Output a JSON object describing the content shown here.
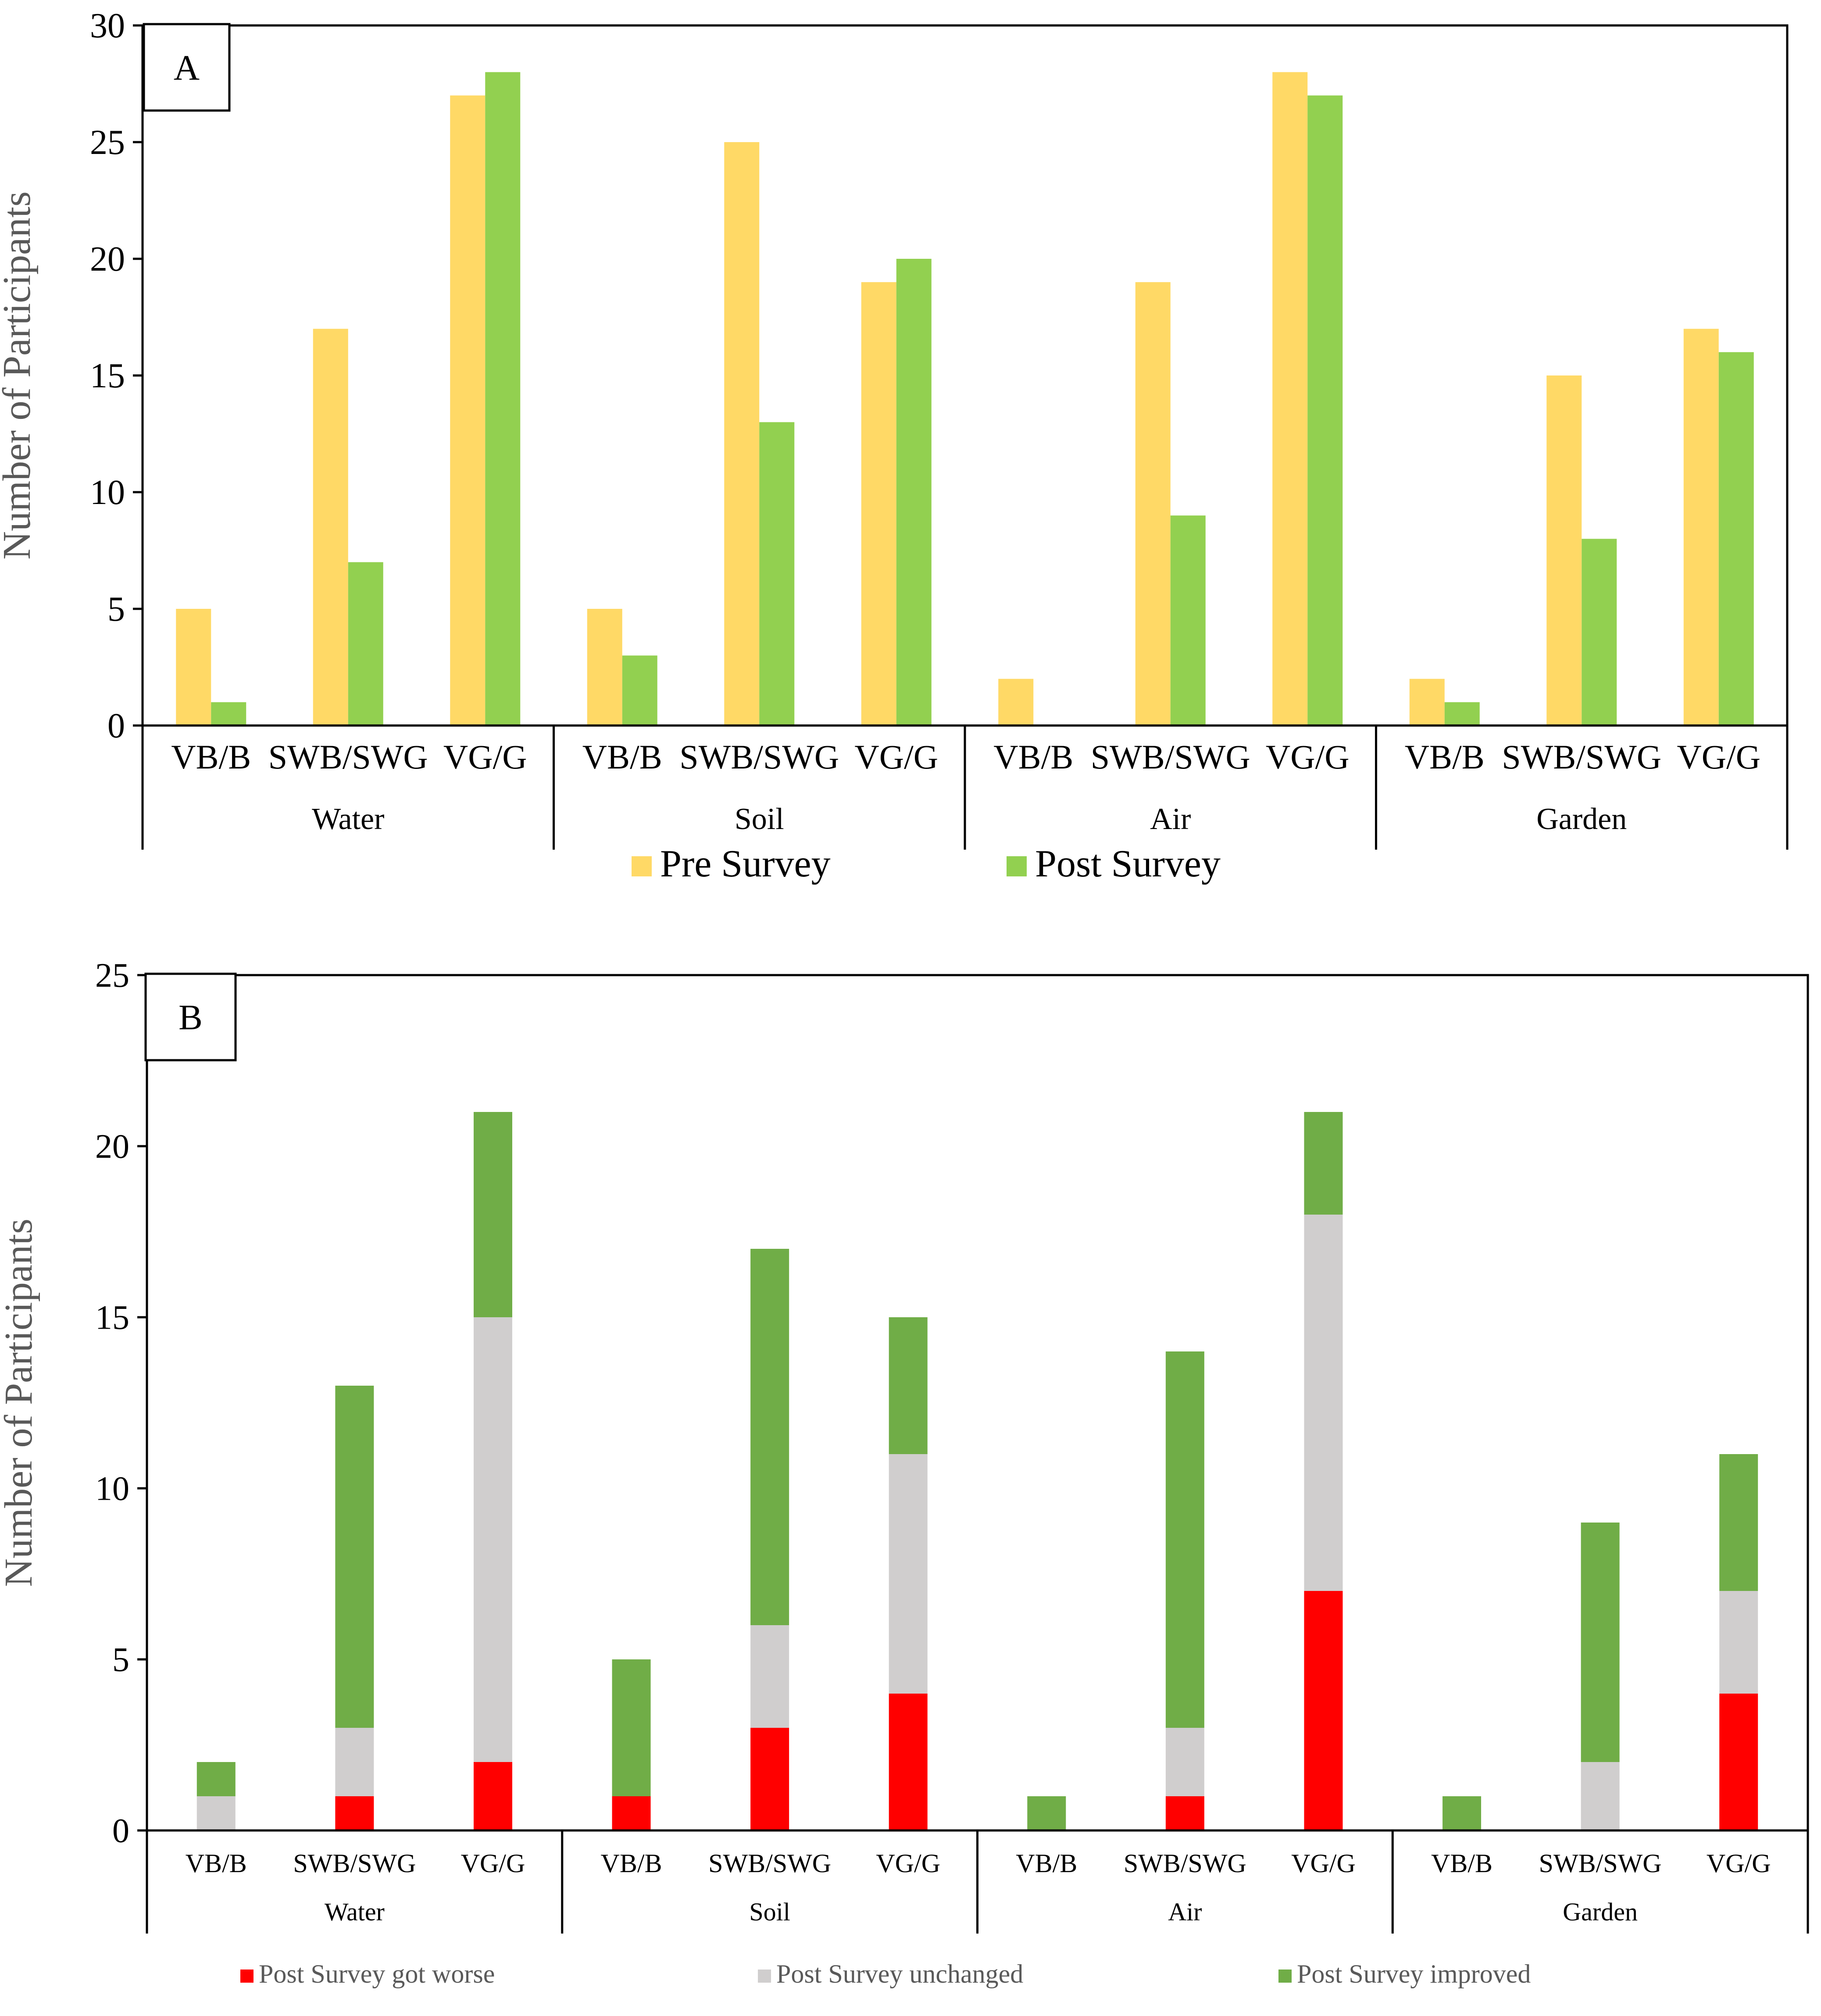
{
  "colors": {
    "pre": "#FFD966",
    "post": "#92D050",
    "worse": "#FF0000",
    "unchanged": "#D0CECE",
    "improved": "#70AD47",
    "axis": "#000000",
    "axis_title": "#595959"
  },
  "chart_data": [
    {
      "panel_label": "A",
      "type": "bar",
      "ylabel": "Number of Participants",
      "ylim": [
        0,
        30
      ],
      "yticks": [
        "0",
        "5",
        "10",
        "15",
        "20",
        "25",
        "30"
      ],
      "groups": [
        "Water",
        "Soil",
        "Air",
        "Garden"
      ],
      "categories": [
        "VB/B",
        "SWB/SWG",
        "VG/G"
      ],
      "series": [
        {
          "name": "Pre Survey",
          "values": [
            [
              5,
              17,
              27
            ],
            [
              5,
              25,
              19
            ],
            [
              2,
              19,
              28
            ],
            [
              2,
              15,
              17
            ]
          ]
        },
        {
          "name": "Post Survey",
          "values": [
            [
              1,
              7,
              28
            ],
            [
              3,
              13,
              20
            ],
            [
              0,
              9,
              27
            ],
            [
              1,
              8,
              16
            ]
          ]
        }
      ],
      "legend_position": "bottom"
    },
    {
      "panel_label": "B",
      "type": "bar",
      "stacked": true,
      "ylabel": "Number of Participants",
      "ylim": [
        0,
        25
      ],
      "yticks": [
        "0",
        "5",
        "10",
        "15",
        "20",
        "25"
      ],
      "groups": [
        "Water",
        "Soil",
        "Air",
        "Garden"
      ],
      "categories": [
        "VB/B",
        "SWB/SWG",
        "VG/G"
      ],
      "series": [
        {
          "name": "Post Survey  got worse",
          "values": [
            [
              0,
              1,
              2
            ],
            [
              1,
              3,
              4
            ],
            [
              0,
              1,
              7
            ],
            [
              0,
              0,
              4
            ]
          ]
        },
        {
          "name": "Post Survey unchanged",
          "values": [
            [
              1,
              2,
              13
            ],
            [
              0,
              3,
              7
            ],
            [
              0,
              2,
              11
            ],
            [
              0,
              2,
              3
            ]
          ]
        },
        {
          "name": "Post Survey improved",
          "values": [
            [
              1,
              10,
              6
            ],
            [
              4,
              11,
              4
            ],
            [
              1,
              11,
              3
            ],
            [
              1,
              7,
              4
            ]
          ]
        }
      ],
      "legend_position": "bottom"
    }
  ]
}
